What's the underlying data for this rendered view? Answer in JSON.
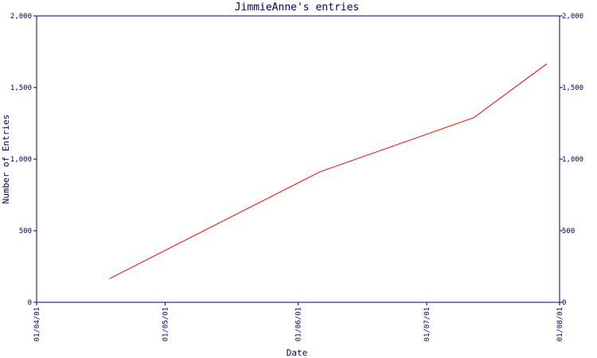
{
  "chart_data": {
    "type": "line",
    "title": "JimmieAnne's entries",
    "xlabel": "Date",
    "ylabel": "Number of Entries",
    "x_ticks": [
      "01/04/01",
      "01/05/01",
      "01/06/01",
      "01/07/01",
      "01/08/01"
    ],
    "y_ticks": [
      "0",
      "500",
      "1,000",
      "1,500",
      "2,000"
    ],
    "ylim": [
      0,
      2000
    ],
    "xlim": [
      "2001-04-01",
      "2001-08-01"
    ],
    "grid": false,
    "series": [
      {
        "x": [
          "2001-04-18",
          "2001-06-06",
          "2001-07-12",
          "2001-07-29"
        ],
        "y": [
          165,
          910,
          1290,
          1665
        ]
      }
    ],
    "colors": {
      "axis": "#000066",
      "line": "#ff0000"
    }
  }
}
